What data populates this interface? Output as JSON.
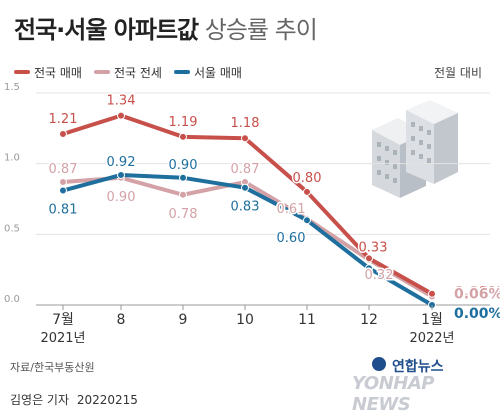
{
  "title": {
    "bold": "전국·서울 아파트값",
    "light": "상승률 추이"
  },
  "unit_label": "전월 대비",
  "legend": [
    {
      "label": "전국 매매",
      "color": "#c8504b"
    },
    {
      "label": "전국 전세",
      "color": "#d4a2a6"
    },
    {
      "label": "서울 매매",
      "color": "#1f6f9e"
    }
  ],
  "source": "자료/한국부동산원",
  "byline": "김영은 기자",
  "date": "20220215",
  "logo": {
    "korean": "연합뉴스",
    "english": "YONHAP NEWS"
  },
  "chart_data": {
    "type": "line",
    "categories": [
      "7월",
      "8",
      "9",
      "10",
      "11",
      "12",
      "1월"
    ],
    "category_sublabels": [
      "2021년",
      "",
      "",
      "",
      "",
      "",
      "2022년"
    ],
    "ylim": [
      0,
      1.5
    ],
    "yticks": [
      "0.0",
      "0.5",
      "1.0",
      "1.5"
    ],
    "yticks_values": [
      0,
      0.5,
      1.0,
      1.5
    ],
    "grid": true,
    "series": [
      {
        "name": "전국 매매",
        "color": "#c8504b",
        "values": [
          1.21,
          1.34,
          1.19,
          1.18,
          0.8,
          0.33,
          0.08
        ],
        "labels": [
          "1.21",
          "1.34",
          "1.19",
          "1.18",
          "0.80",
          "0.33",
          "0.08%"
        ]
      },
      {
        "name": "전국 전세",
        "color": "#d4a2a6",
        "values": [
          0.87,
          0.9,
          0.78,
          0.87,
          0.61,
          0.32,
          0.06
        ],
        "labels": [
          "0.87",
          "0.90",
          "0.78",
          "0.87",
          "0.61",
          "0.32",
          "0.06%"
        ]
      },
      {
        "name": "서울 매매",
        "color": "#1f6f9e",
        "values": [
          0.81,
          0.92,
          0.9,
          0.83,
          0.6,
          0.26,
          0.0
        ],
        "labels": [
          "0.81",
          "0.92",
          "0.90",
          "0.83",
          "0.60",
          "",
          "0.00%"
        ]
      }
    ]
  }
}
